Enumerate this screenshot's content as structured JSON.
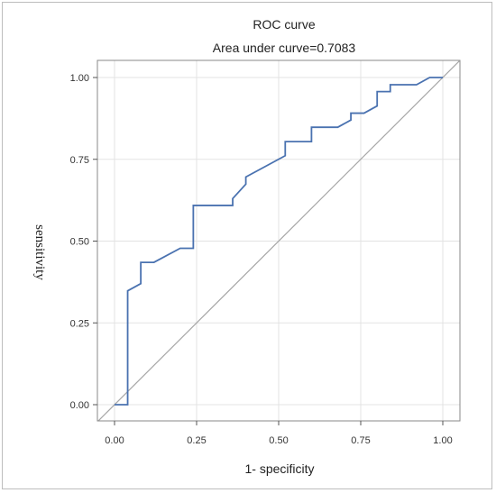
{
  "chart_data": {
    "type": "line",
    "title": "ROC curve",
    "subtitle": "Area under curve=0.7083",
    "xlabel": "1- specificity",
    "ylabel": "sensitivity",
    "xlim": [
      0,
      1
    ],
    "ylim": [
      0,
      1
    ],
    "xticks": [
      "0.00",
      "0.25",
      "0.50",
      "0.75",
      "1.00"
    ],
    "yticks": [
      "0.00",
      "0.25",
      "0.50",
      "0.75",
      "1.00"
    ],
    "grid": true,
    "series": [
      {
        "color": "#4a72b0",
        "x": [
          0.0,
          0.04,
          0.04,
          0.08,
          0.08,
          0.12,
          0.2,
          0.24,
          0.24,
          0.36,
          0.36,
          0.38,
          0.4,
          0.4,
          0.52,
          0.52,
          0.6,
          0.6,
          0.68,
          0.72,
          0.72,
          0.76,
          0.8,
          0.8,
          0.84,
          0.84,
          0.92,
          0.96,
          1.0
        ],
        "y": [
          0.0,
          0.0,
          0.348,
          0.37,
          0.435,
          0.435,
          0.478,
          0.478,
          0.609,
          0.609,
          0.63,
          0.652,
          0.674,
          0.696,
          0.761,
          0.804,
          0.804,
          0.848,
          0.848,
          0.87,
          0.891,
          0.891,
          0.913,
          0.957,
          0.957,
          0.978,
          0.978,
          1.0,
          1.0
        ]
      },
      {
        "color": "#a6a6a6",
        "x": [
          0,
          1
        ],
        "y": [
          0,
          1
        ]
      }
    ]
  }
}
